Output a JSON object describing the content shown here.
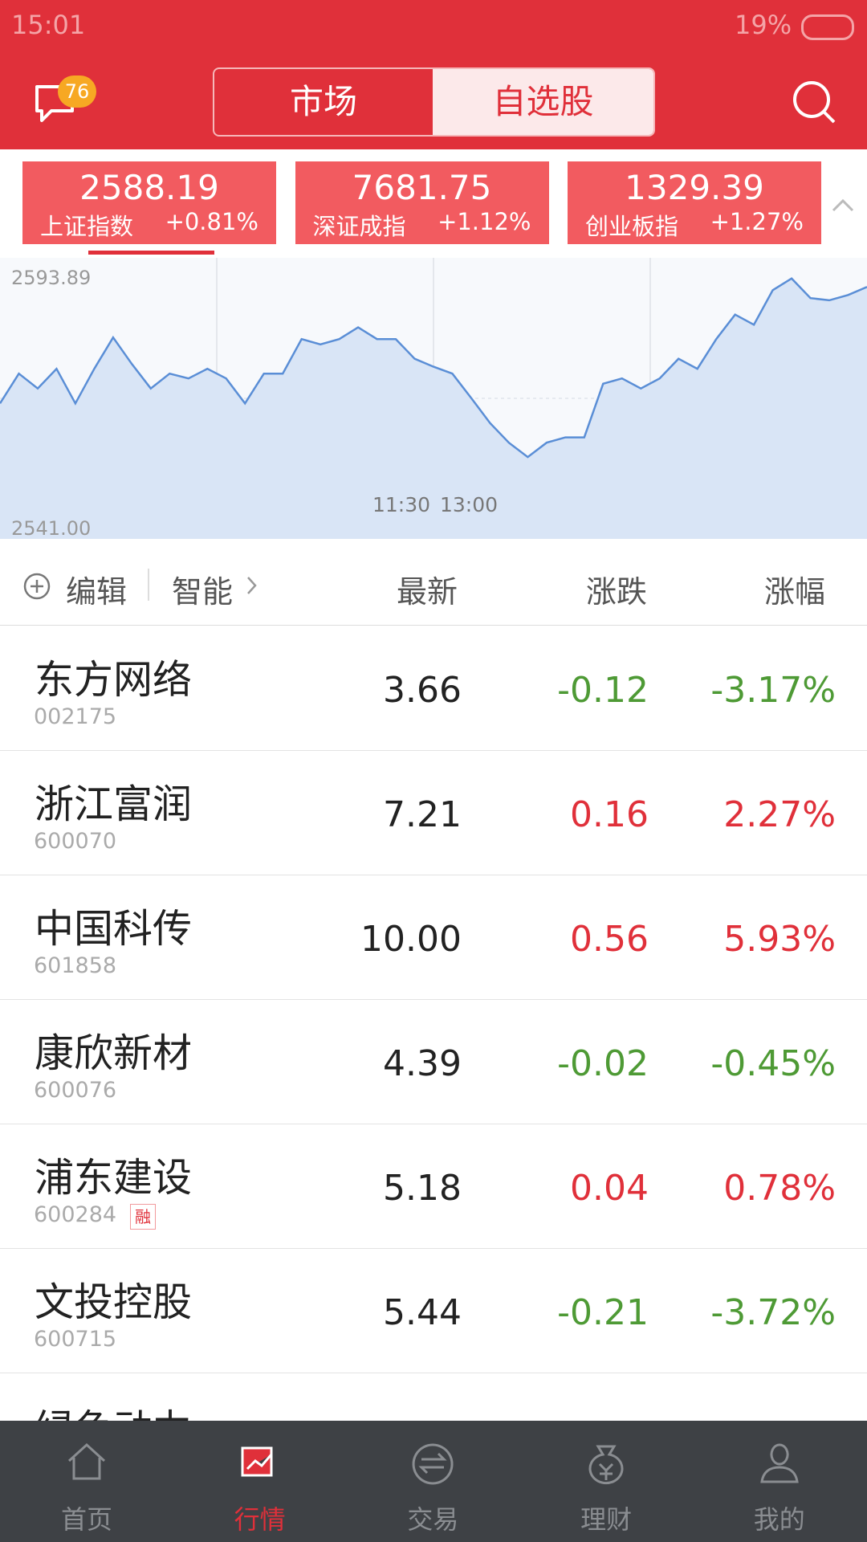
{
  "status_bar": {
    "time": "15:01",
    "battery": "19%"
  },
  "header": {
    "badge": "76",
    "tabs": [
      "市场",
      "自选股"
    ]
  },
  "indices": [
    {
      "value": "2588.19",
      "name": "上证指数",
      "change": "+0.81%"
    },
    {
      "value": "7681.75",
      "name": "深证成指",
      "change": "+1.12%"
    },
    {
      "value": "1329.39",
      "name": "创业板指",
      "change": "+1.27%"
    }
  ],
  "intraday": {
    "ylim": [
      2541,
      2593.89
    ],
    "yticks": [
      {
        "value": 2593.89,
        "label": "2593.89"
      },
      {
        "value": 2541,
        "label": "2541.00"
      }
    ],
    "time_labels": [
      "11:30",
      "13:00"
    ],
    "values": [
      2566.5,
      2572.1,
      2569.3,
      2573.0,
      2566.5,
      2573.0,
      2578.9,
      2573.9,
      2569.3,
      2572.1,
      2571.2,
      2573.0,
      2571.2,
      2566.5,
      2572.1,
      2572.1,
      2578.6,
      2577.6,
      2578.6,
      2580.8,
      2578.6,
      2578.6,
      2574.9,
      2573.4,
      2572.1,
      2567.5,
      2562.8,
      2559.1,
      2556.4,
      2559.1,
      2560.1,
      2560.1,
      2570.2,
      2571.2,
      2569.3,
      2571.2,
      2574.9,
      2573.0,
      2578.6,
      2583.2,
      2581.3,
      2587.8,
      2590.0,
      2586.3,
      2585.9,
      2586.9,
      2588.4
    ]
  },
  "table": {
    "edit": "编辑",
    "smart": "智能",
    "columns": [
      "最新",
      "涨跌",
      "涨幅"
    ],
    "rows": [
      {
        "name": "东方网络",
        "code": "002175",
        "latest": "3.66",
        "change": "-0.12",
        "pct": "-3.17%"
      },
      {
        "name": "浙江富润",
        "code": "600070",
        "latest": "7.21",
        "change": "0.16",
        "pct": "2.27%"
      },
      {
        "name": "中国科传",
        "code": "601858",
        "latest": "10.00",
        "change": "0.56",
        "pct": "5.93%"
      },
      {
        "name": "康欣新材",
        "code": "600076",
        "latest": "4.39",
        "change": "-0.02",
        "pct": "-0.45%"
      },
      {
        "name": "浦东建设",
        "code": "600284",
        "latest": "5.18",
        "change": "0.04",
        "pct": "0.78%",
        "tag": "融"
      },
      {
        "name": "文投控股",
        "code": "600715",
        "latest": "5.44",
        "change": "-0.21",
        "pct": "-3.72%"
      }
    ],
    "partial_row": "绿色动力"
  },
  "nav": {
    "items": [
      "首页",
      "行情",
      "交易",
      "理财",
      "我的"
    ]
  }
}
